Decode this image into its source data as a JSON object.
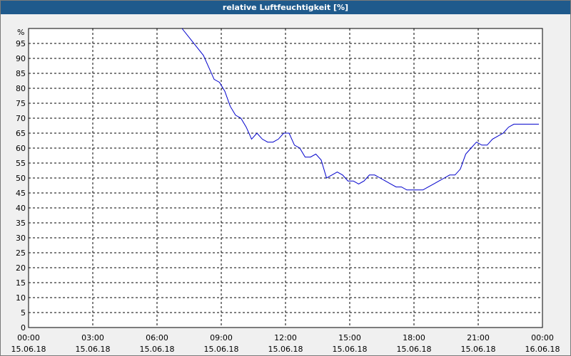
{
  "window": {
    "title": "relative Luftfeuchtigkeit [%]"
  },
  "colors": {
    "titlebar": "#1f5a8c",
    "series": "#0000cc",
    "grid": "#000000",
    "background": "#f0f0f0",
    "plot": "#ffffff"
  },
  "chart_data": {
    "type": "line",
    "title": "relative Luftfeuchtigkeit [%]",
    "xlabel": "",
    "ylabel": "%",
    "ylim": [
      0,
      100
    ],
    "xlim_hours": [
      0,
      24
    ],
    "grid": true,
    "y_ticks": [
      0,
      5,
      10,
      15,
      20,
      25,
      30,
      35,
      40,
      45,
      50,
      55,
      60,
      65,
      70,
      75,
      80,
      85,
      90,
      95
    ],
    "x_ticks": [
      {
        "time": "00:00",
        "date": "15.06.18"
      },
      {
        "time": "03:00",
        "date": "15.06.18"
      },
      {
        "time": "06:00",
        "date": "15.06.18"
      },
      {
        "time": "09:00",
        "date": "15.06.18"
      },
      {
        "time": "12:00",
        "date": "15.06.18"
      },
      {
        "time": "15:00",
        "date": "15.06.18"
      },
      {
        "time": "18:00",
        "date": "15.06.18"
      },
      {
        "time": "21:00",
        "date": "15.06.18"
      },
      {
        "time": "00:00",
        "date": "16.06.18"
      }
    ],
    "series": [
      {
        "x": [
          "07:10",
          "07:30",
          "07:50",
          "08:10",
          "08:25",
          "08:40",
          "08:55",
          "09:10",
          "09:25",
          "09:40",
          "09:55",
          "10:10",
          "10:25",
          "10:40",
          "10:55",
          "11:10",
          "11:25",
          "11:40",
          "11:55",
          "12:10",
          "12:25",
          "12:40",
          "12:55",
          "13:10",
          "13:25",
          "13:40",
          "13:55",
          "14:10",
          "14:25",
          "14:40",
          "14:55",
          "15:10",
          "15:25",
          "15:40",
          "15:55",
          "16:10",
          "16:25",
          "16:40",
          "16:55",
          "17:10",
          "17:25",
          "17:40",
          "17:55",
          "18:10",
          "18:25",
          "18:40",
          "18:55",
          "19:10",
          "19:25",
          "19:40",
          "19:55",
          "20:10",
          "20:25",
          "20:40",
          "20:55",
          "21:10",
          "21:25",
          "21:40",
          "21:55",
          "22:10",
          "22:25",
          "22:40",
          "22:55",
          "23:10",
          "23:25",
          "23:40",
          "23:50"
        ],
        "y": [
          100,
          97,
          94,
          91,
          87,
          83,
          82,
          79,
          74,
          71,
          70,
          67,
          63,
          65,
          63,
          62,
          62,
          63,
          65,
          65,
          61,
          60,
          57,
          57,
          58,
          56,
          50,
          51,
          52,
          51,
          49,
          49,
          48,
          49,
          51,
          51,
          50,
          49,
          48,
          47,
          47,
          46,
          46,
          46,
          46,
          47,
          48,
          49,
          50,
          51,
          51,
          53,
          58,
          60,
          62,
          61,
          61,
          63,
          64,
          65,
          67,
          68,
          68,
          68,
          68,
          68,
          68
        ]
      }
    ]
  }
}
